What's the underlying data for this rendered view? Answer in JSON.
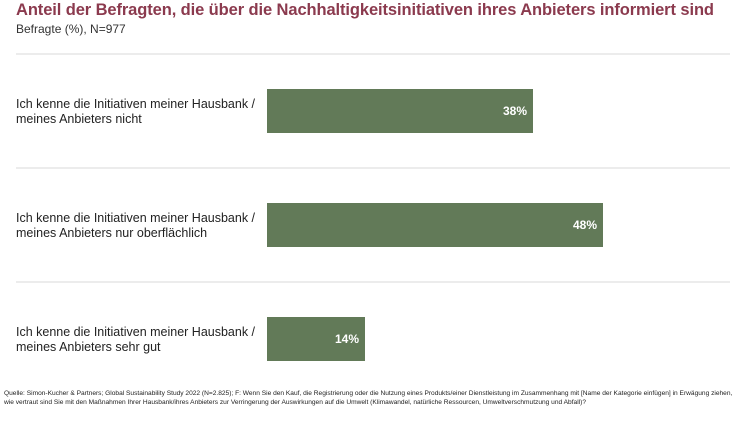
{
  "title": "Anteil der Befragten, die über die Nachhaltigkeitsinitiativen ihres Anbieters informiert sind",
  "subtitle": "Befragte (%), N=977",
  "source": "Quelle: Simon-Kucher & Partners; Global Sustainability Study 2022 (N=2.825); F: Wenn Sie den Kauf, die Registrierung oder die Nutzung eines Produkts/einer Dienstleistung im Zusammenhang mit [Name der Kategorie einfügen] in Erwägung ziehen, wie vertraut sind Sie mit den Maßnahmen Ihrer Hausbank/ihres Anbieters zur Verringerung der Auswirkungen auf die Umwelt (Klimawandel, natürliche Ressourcen, Umweltverschmutzung und Abfall)?",
  "chart_data": {
    "type": "bar",
    "orientation": "horizontal",
    "title": "Anteil der Befragten, die über die Nachhaltigkeitsinitiativen ihres Anbieters informiert sind",
    "subtitle": "Befragte (%), N=977",
    "categories": [
      [
        "Ich kenne die Initiativen meiner Hausbank /",
        "meines Anbieters nicht"
      ],
      [
        "Ich kenne die Initiativen meiner Hausbank /",
        "meines Anbieters nur oberflächlich"
      ],
      [
        "Ich kenne die Initiativen meiner Hausbank /",
        "meines Anbieters sehr gut"
      ]
    ],
    "values": [
      38,
      48,
      14
    ],
    "value_labels": [
      "38%",
      "48%",
      "14%"
    ],
    "unit": "%",
    "xlim": [
      0,
      100
    ],
    "bar_color": "#627a58",
    "title_color": "#8b3a4e",
    "grid": false
  }
}
